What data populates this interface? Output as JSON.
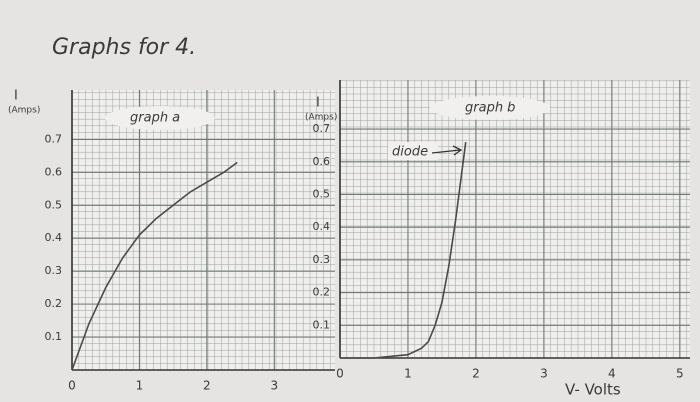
{
  "chart_data": [
    {
      "type": "line",
      "title": "Graphs for 4.",
      "y_label": "I",
      "y_unit": "(Amps)",
      "subtitle": "graph a",
      "x": [
        0,
        0.25,
        0.5,
        0.75,
        1,
        1.25,
        1.5,
        1.75,
        2,
        2.25,
        2.45
      ],
      "series": [
        {
          "color": "#4a4a4a",
          "values": [
            0,
            0.14,
            0.25,
            0.34,
            0.41,
            0.46,
            0.5,
            0.54,
            0.57,
            0.6,
            0.63
          ]
        }
      ],
      "xlim": [
        0,
        3.9
      ],
      "ylim": [
        0,
        0.85
      ],
      "xticks": [
        0,
        1,
        2,
        3
      ],
      "yticks": [
        0.1,
        0.2,
        0.3,
        0.4,
        0.5,
        0.6,
        0.7
      ]
    },
    {
      "type": "line",
      "y_label": "I",
      "y_unit": "(Amps)",
      "subtitle": "graph b",
      "annotation": "diode",
      "x_label": "V- Volts",
      "x": [
        0,
        0.5,
        1,
        1.2,
        1.3,
        1.4,
        1.5,
        1.6,
        1.7,
        1.8,
        1.85
      ],
      "series": [
        {
          "color": "#4a4a4a",
          "values": [
            0,
            0,
            0.01,
            0.03,
            0.05,
            0.1,
            0.17,
            0.28,
            0.42,
            0.58,
            0.66
          ]
        }
      ],
      "xlim": [
        0,
        5.15
      ],
      "ylim": [
        0,
        0.85
      ],
      "xticks": [
        0,
        1,
        2,
        3,
        4,
        5
      ],
      "yticks": [
        0.1,
        0.2,
        0.3,
        0.4,
        0.5,
        0.6,
        0.7
      ]
    }
  ]
}
